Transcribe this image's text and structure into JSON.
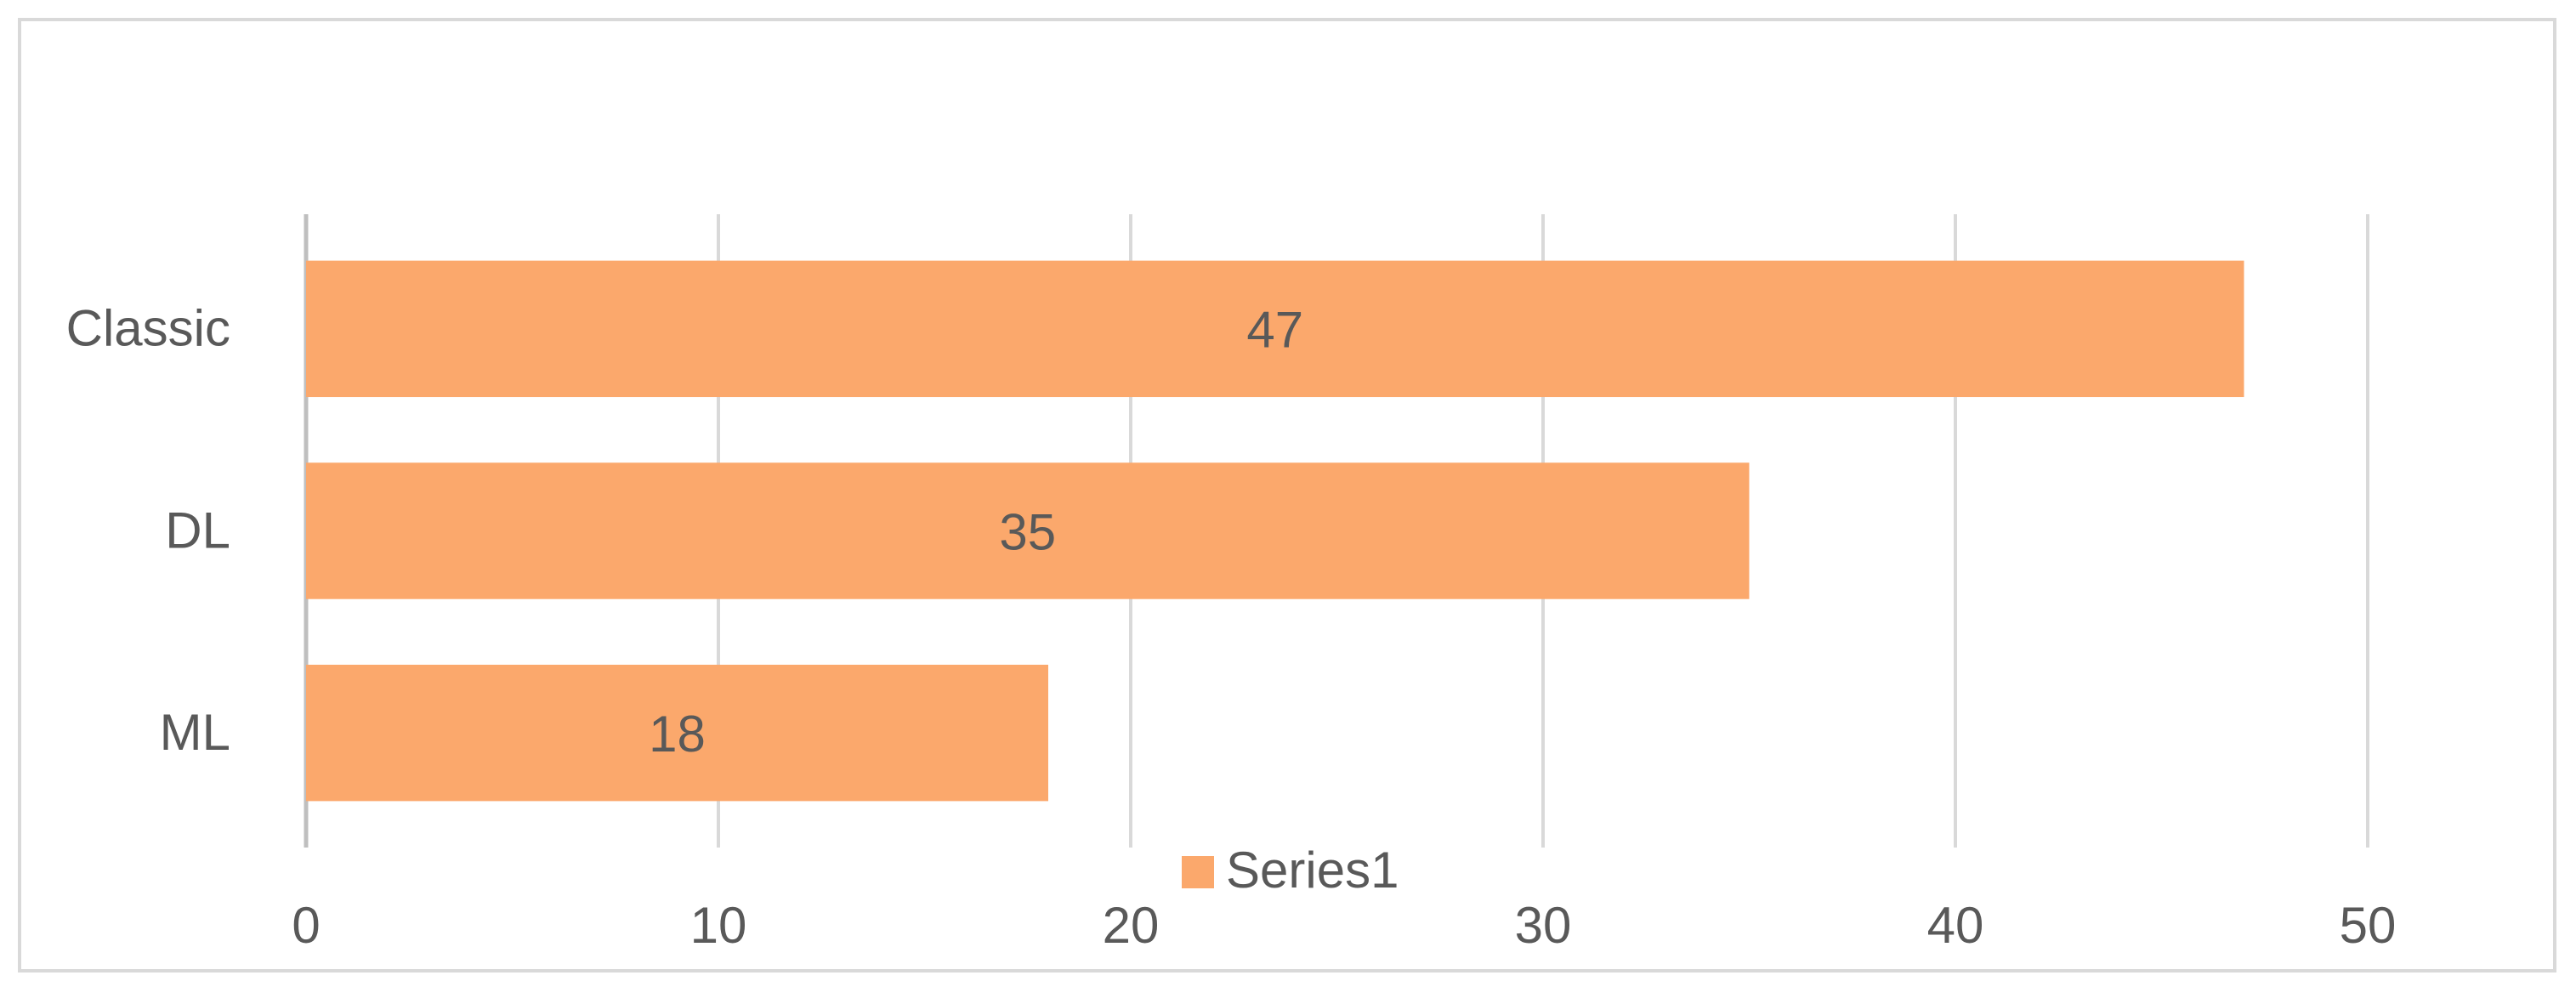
{
  "chart_data": {
    "type": "bar",
    "orientation": "horizontal",
    "categories": [
      "Classic",
      "DL",
      "ML"
    ],
    "series": [
      {
        "name": "Series1",
        "color": "#fba86c",
        "values": [
          47,
          35,
          18
        ]
      }
    ],
    "xlim": [
      0,
      50
    ],
    "xticks": [
      0,
      10,
      20,
      30,
      40,
      50
    ],
    "grid": true,
    "legend": "bottom"
  }
}
